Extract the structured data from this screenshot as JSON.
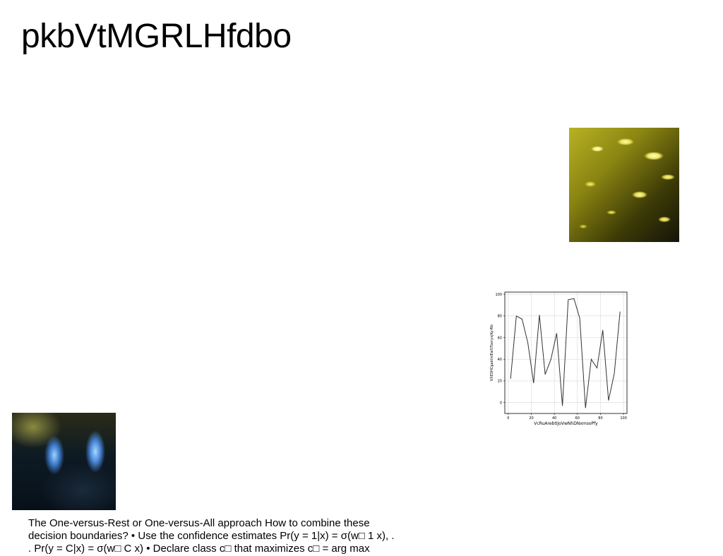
{
  "slide": {
    "title": "pkbVtMGRLHfdbo",
    "caption_lines": [
      "The One-versus-Rest or One-versus-All approach How to combine these",
      "decision boundaries? • Use the confidence estimates Pr(y = 1|x) = σ(w□ 1 x), .",
      ". Pr(y = C|x) = σ(w□ C x) • Declare class c□ that maximizes c□ = arg max"
    ]
  },
  "chart_data": {
    "type": "line",
    "xlabel": "VcRuArebtIJoVwNhDNxmsoPfy",
    "ylabel": "VXESHCgaktntEwSTboryxjKyrRb",
    "xlim": [
      -3,
      103
    ],
    "ylim": [
      -10,
      102
    ],
    "xticks": [
      0,
      20,
      40,
      60,
      80,
      100
    ],
    "yticks": [
      0,
      20,
      40,
      60,
      80,
      100
    ],
    "grid": true,
    "line_color": "#333333",
    "x": [
      2,
      7,
      12,
      17,
      22,
      27,
      32,
      37,
      42,
      47,
      52,
      57,
      62,
      67,
      72,
      77,
      82,
      87,
      92,
      97
    ],
    "y": [
      22,
      80,
      77,
      55,
      18,
      81,
      26,
      40,
      64,
      -3,
      95,
      96,
      78,
      -5,
      40,
      32,
      67,
      2,
      27,
      84
    ]
  }
}
